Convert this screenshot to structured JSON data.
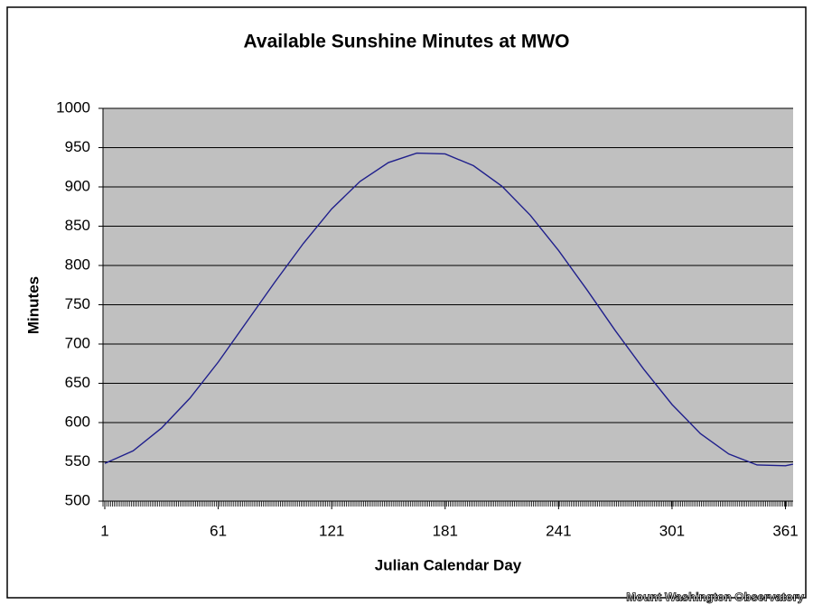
{
  "chart_data": {
    "type": "line",
    "title": "Available Sunshine Minutes at MWO",
    "x_label": "Julian Calendar Day",
    "y_label": "Minutes",
    "watermark": "Mount Washington Observatory",
    "x": [
      1,
      16,
      31,
      46,
      61,
      76,
      91,
      106,
      121,
      136,
      151,
      166,
      181,
      196,
      211,
      226,
      241,
      256,
      271,
      286,
      301,
      316,
      331,
      346,
      361,
      365
    ],
    "series": [
      {
        "name": "Available Sunshine Minutes",
        "color": "#1f1f8c",
        "values": [
          548,
          564,
          593,
          631,
          677,
          728,
          779,
          828,
          872,
          907,
          931,
          943,
          942,
          927,
          901,
          864,
          819,
          769,
          717,
          668,
          623,
          586,
          560,
          546,
          545,
          547
        ]
      }
    ],
    "xlim": [
      1,
      366
    ],
    "xticks": [
      1,
      61,
      121,
      181,
      241,
      301,
      361
    ],
    "ylim": [
      500,
      1000
    ],
    "yticks": [
      500,
      550,
      600,
      650,
      700,
      750,
      800,
      850,
      900,
      950,
      1000
    ],
    "grid": true
  }
}
